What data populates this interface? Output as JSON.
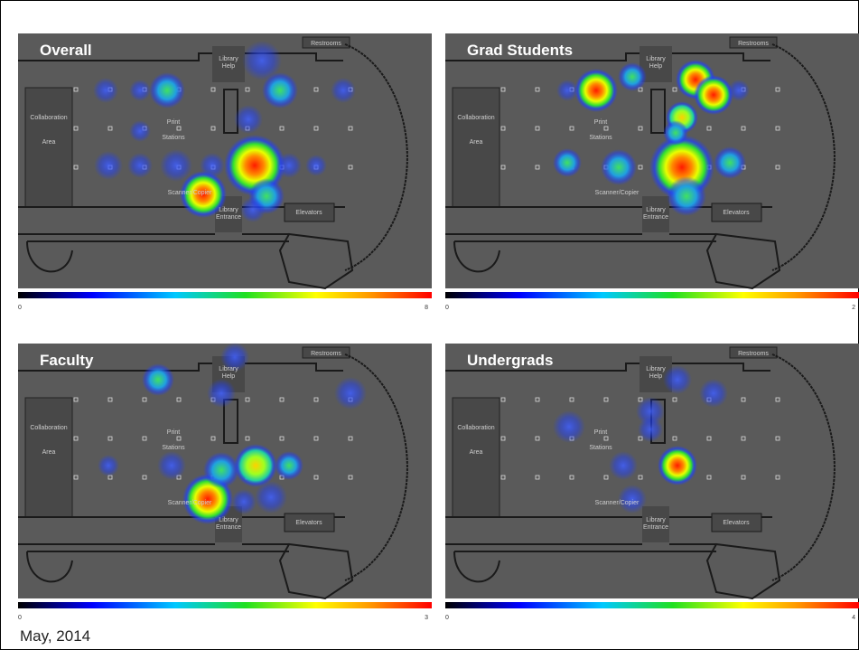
{
  "panels": [
    {
      "title": "Overall",
      "scale_min": 0,
      "scale_max": 8
    },
    {
      "title": "Grad Students",
      "scale_min": 0,
      "scale_max": 2
    },
    {
      "title": "Faculty",
      "scale_min": 0,
      "scale_max": 3
    },
    {
      "title": "Undergrads",
      "scale_min": 0,
      "scale_max": 4
    }
  ],
  "floor_labels": {
    "library_help": [
      "Library",
      "Help"
    ],
    "restrooms": "Restrooms",
    "collaboration": [
      "Collaboration",
      "Area"
    ],
    "print": [
      "Print",
      "Stations"
    ],
    "entrance": [
      "Library",
      "Entrance"
    ],
    "elevators": "Elevators",
    "scanner": "Scanner/Copier"
  },
  "footer": "May, 2014"
}
